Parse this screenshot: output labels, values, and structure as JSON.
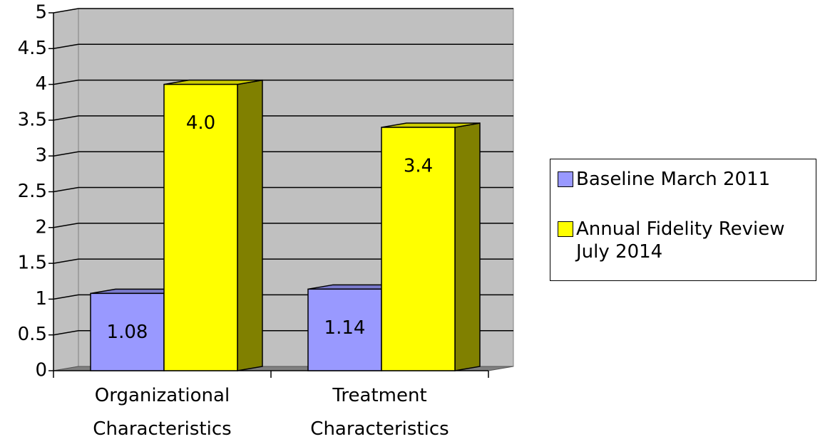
{
  "chart_data": {
    "type": "bar3d",
    "categories": [
      "Organizational Characteristics",
      "Treatment Characteristics"
    ],
    "series": [
      {
        "name": "Baseline March 2011",
        "color": "#9999ff",
        "values": [
          1.08,
          1.14
        ]
      },
      {
        "name": "Annual Fidelity Review July 2014",
        "color": "#ffff00",
        "values": [
          4.0,
          3.4
        ],
        "value_labels": [
          "4.0",
          "3.4"
        ]
      }
    ],
    "ylim": [
      0,
      5
    ],
    "yticks": [
      0,
      0.5,
      1,
      1.5,
      2,
      2.5,
      3,
      3.5,
      4,
      4.5,
      5
    ],
    "grid": true,
    "legend": "right"
  }
}
